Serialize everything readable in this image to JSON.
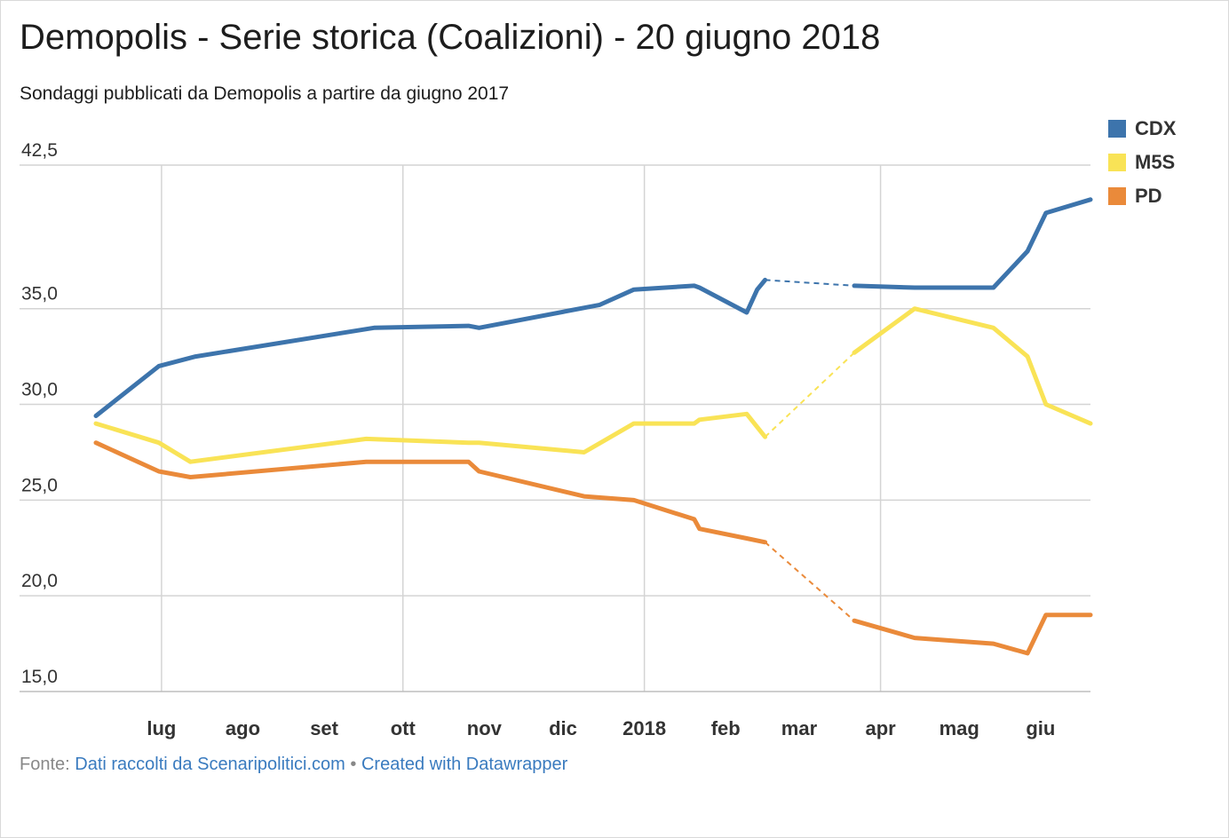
{
  "title": "Demopolis - Serie storica (Coalizioni) - 20 giugno 2018",
  "subtitle": "Sondaggi pubblicati da Demopolis a partire da giugno 2017",
  "footer": {
    "source_label": "Fonte:",
    "source_link": "Dati raccolti da Scenaripolitici.com",
    "separator": "•",
    "created_link": "Created with Datawrapper"
  },
  "legend": [
    {
      "name": "CDX",
      "color": "#3d74ac"
    },
    {
      "name": "M5S",
      "color": "#f9e356"
    },
    {
      "name": "PD",
      "color": "#ea8a3a"
    }
  ],
  "chart_data": {
    "type": "line",
    "title": "Demopolis - Serie storica (Coalizioni) - 20 giugno 2018",
    "subtitle": "Sondaggi pubblicati da Demopolis a partire da giugno 2017",
    "xlabel": "",
    "ylabel": "",
    "ylim": [
      15,
      42.5
    ],
    "xlim": [
      "2017-06-06",
      "2018-06-20"
    ],
    "grid": true,
    "legend_position": "top-right",
    "y_ticks": [
      {
        "value": 42.5,
        "label": "42,5"
      },
      {
        "value": 35.0,
        "label": "35,0"
      },
      {
        "value": 30.0,
        "label": "30,0"
      },
      {
        "value": 25.0,
        "label": "25,0"
      },
      {
        "value": 20.0,
        "label": "20,0"
      },
      {
        "value": 15.0,
        "label": "15,0"
      }
    ],
    "x_ticks": [
      {
        "date": "2017-07-01",
        "label": "lug",
        "grid": true
      },
      {
        "date": "2017-08-01",
        "label": "ago",
        "grid": false
      },
      {
        "date": "2017-09-01",
        "label": "set",
        "grid": false
      },
      {
        "date": "2017-10-01",
        "label": "ott",
        "grid": true
      },
      {
        "date": "2017-11-01",
        "label": "nov",
        "grid": false
      },
      {
        "date": "2017-12-01",
        "label": "dic",
        "grid": false
      },
      {
        "date": "2018-01-01",
        "label": "2018",
        "grid": true
      },
      {
        "date": "2018-02-01",
        "label": "feb",
        "grid": false
      },
      {
        "date": "2018-03-01",
        "label": "mar",
        "grid": false
      },
      {
        "date": "2018-04-01",
        "label": "apr",
        "grid": true
      },
      {
        "date": "2018-05-01",
        "label": "mag",
        "grid": false
      },
      {
        "date": "2018-06-01",
        "label": "giu",
        "grid": false
      }
    ],
    "dashed_gap": {
      "from": "2018-02-16",
      "to": "2018-03-22"
    },
    "series": [
      {
        "name": "CDX",
        "color": "#3d74ac",
        "points": [
          [
            "2017-06-06",
            29.4
          ],
          [
            "2017-06-30",
            32.0
          ],
          [
            "2017-07-14",
            32.5
          ],
          [
            "2017-09-20",
            34.0
          ],
          [
            "2017-10-26",
            34.1
          ],
          [
            "2017-10-30",
            34.0
          ],
          [
            "2017-12-15",
            35.2
          ],
          [
            "2017-12-28",
            36.0
          ],
          [
            "2018-01-20",
            36.2
          ],
          [
            "2018-01-22",
            36.1
          ],
          [
            "2018-02-09",
            34.8
          ],
          [
            "2018-02-13",
            36.0
          ],
          [
            "2018-02-16",
            36.5
          ],
          [
            "2018-02-21",
            37.0
          ],
          [
            "2018-03-22",
            36.2
          ],
          [
            "2018-04-14",
            36.1
          ],
          [
            "2018-05-14",
            36.1
          ],
          [
            "2018-05-27",
            38.0
          ],
          [
            "2018-06-03",
            40.0
          ],
          [
            "2018-06-20",
            40.7
          ]
        ]
      },
      {
        "name": "M5S",
        "color": "#f9e356",
        "points": [
          [
            "2017-06-06",
            29.0
          ],
          [
            "2017-06-30",
            28.0
          ],
          [
            "2017-07-12",
            27.0
          ],
          [
            "2017-09-17",
            28.2
          ],
          [
            "2017-10-26",
            28.0
          ],
          [
            "2017-10-30",
            28.0
          ],
          [
            "2017-12-09",
            27.5
          ],
          [
            "2017-12-28",
            29.0
          ],
          [
            "2018-01-20",
            29.0
          ],
          [
            "2018-01-22",
            29.2
          ],
          [
            "2018-02-09",
            29.5
          ],
          [
            "2018-02-16",
            28.3
          ],
          [
            "2018-02-21",
            28.0
          ],
          [
            "2018-03-22",
            32.7
          ],
          [
            "2018-04-14",
            35.0
          ],
          [
            "2018-05-14",
            34.0
          ],
          [
            "2018-05-27",
            32.5
          ],
          [
            "2018-06-03",
            30.0
          ],
          [
            "2018-06-20",
            29.0
          ]
        ]
      },
      {
        "name": "PD",
        "color": "#ea8a3a",
        "points": [
          [
            "2017-06-06",
            28.0
          ],
          [
            "2017-06-30",
            26.5
          ],
          [
            "2017-07-12",
            26.2
          ],
          [
            "2017-09-17",
            27.0
          ],
          [
            "2017-10-26",
            27.0
          ],
          [
            "2017-10-30",
            26.5
          ],
          [
            "2017-12-09",
            25.2
          ],
          [
            "2017-12-28",
            25.0
          ],
          [
            "2018-01-20",
            24.0
          ],
          [
            "2018-01-22",
            23.5
          ],
          [
            "2018-02-09",
            23.0
          ],
          [
            "2018-02-16",
            22.8
          ],
          [
            "2018-02-21",
            22.4
          ],
          [
            "2018-03-22",
            18.7
          ],
          [
            "2018-04-14",
            17.8
          ],
          [
            "2018-05-14",
            17.5
          ],
          [
            "2018-05-27",
            17.0
          ],
          [
            "2018-06-03",
            19.0
          ],
          [
            "2018-06-20",
            19.0
          ]
        ]
      }
    ]
  }
}
